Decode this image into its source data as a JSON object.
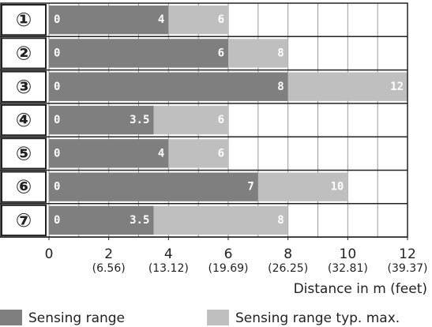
{
  "chart_data": {
    "type": "range-bar",
    "categories": [
      "①",
      "②",
      "③",
      "④",
      "⑤",
      "⑥",
      "⑦"
    ],
    "range_start": [
      0,
      0,
      0,
      0,
      0,
      0,
      0
    ],
    "series": [
      {
        "name": "Sensing range",
        "color": "#7f7f7f",
        "values": [
          4,
          6,
          8,
          3.5,
          4,
          7,
          3.5
        ]
      },
      {
        "name": "Sensing range typ. max.",
        "color": "#bfbfbf",
        "values": [
          6,
          8,
          12,
          6,
          6,
          10,
          8
        ]
      }
    ],
    "xlim": [
      0,
      12
    ],
    "xticks": [
      0,
      2,
      4,
      6,
      8,
      10,
      12
    ],
    "xticks_feet": [
      null,
      "(6.56)",
      "(13.12)",
      "(19.69)",
      "(26.25)",
      "(32.81)",
      "(39.37)"
    ],
    "xgrid": [
      0,
      1,
      2,
      3,
      4,
      5,
      6,
      7,
      8,
      9,
      10,
      11,
      12
    ],
    "xlabel": "Distance in m (feet)"
  }
}
